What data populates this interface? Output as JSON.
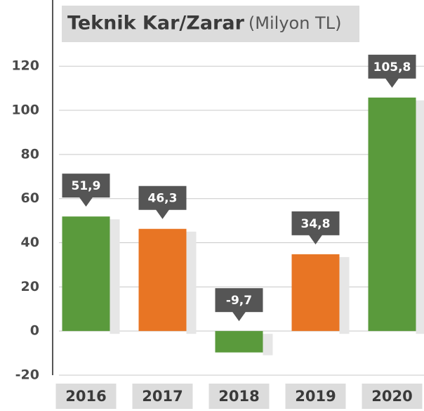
{
  "chart_data": {
    "type": "bar",
    "title": "Teknik Kar/Zarar",
    "subtitle": "(Milyon TL)",
    "categories": [
      "2016",
      "2017",
      "2018",
      "2019",
      "2020"
    ],
    "values": [
      51.9,
      46.3,
      -9.7,
      34.8,
      105.8
    ],
    "value_labels": [
      "51,9",
      "46,3",
      "-9,7",
      "34,8",
      "105,8"
    ],
    "colors": [
      "#5a9a3c",
      "#e87524",
      "#5a9a3c",
      "#e87524",
      "#5a9a3c"
    ],
    "ylim": [
      -20,
      150
    ],
    "yticks": [
      -20,
      0,
      20,
      40,
      60,
      80,
      100,
      120
    ],
    "grid": true
  }
}
